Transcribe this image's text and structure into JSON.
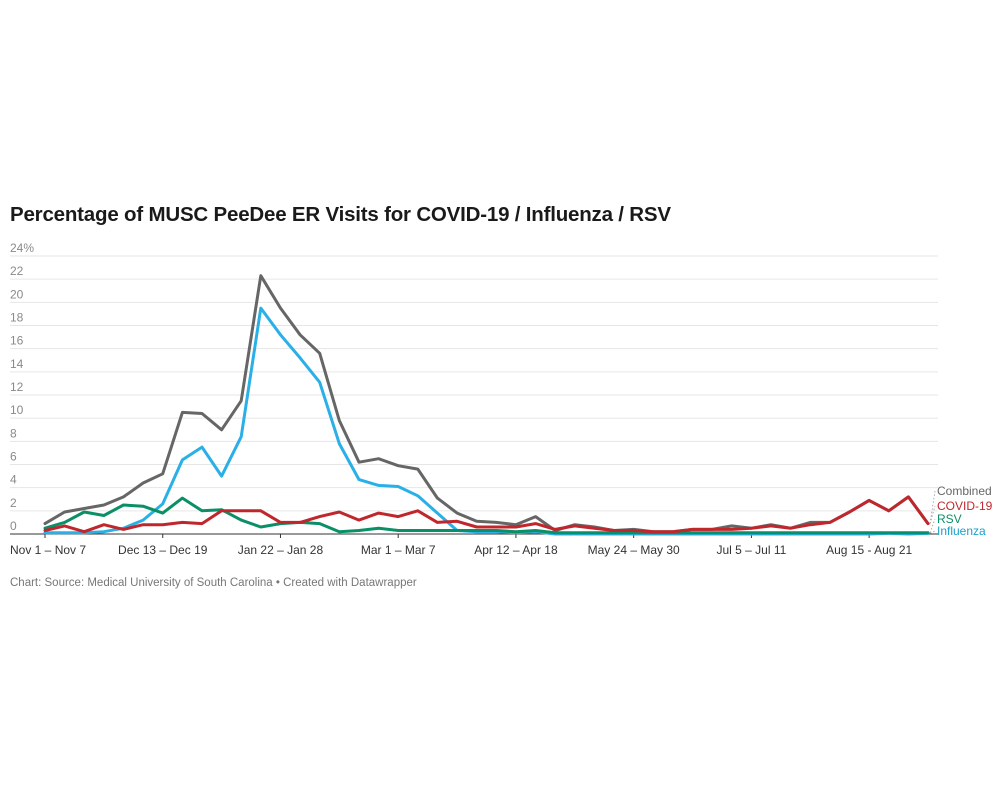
{
  "title": "Percentage of MUSC PeeDee ER Visits for COVID-19 / Influenza / RSV",
  "footer": "Chart: Source: Medical University of South Carolina • Created with Datawrapper",
  "chart_data": {
    "type": "line",
    "title": "Percentage of MUSC PeeDee ER Visits for COVID-19 / Influenza / RSV",
    "ylim": [
      0,
      24
    ],
    "y_ticks": [
      0,
      2,
      4,
      6,
      8,
      10,
      12,
      14,
      16,
      18,
      20,
      22,
      24
    ],
    "y_tick_labels": [
      "0",
      "2",
      "4",
      "6",
      "8",
      "10",
      "12",
      "14",
      "16",
      "18",
      "20",
      "22",
      "24%"
    ],
    "x_tick_labels": [
      {
        "index": 0,
        "label": "Nov 1 – Nov 7"
      },
      {
        "index": 6,
        "label": "Dec 13 – Dec 19"
      },
      {
        "index": 12,
        "label": "Jan 22 – Jan 28"
      },
      {
        "index": 18,
        "label": "Mar 1 – Mar 7"
      },
      {
        "index": 24,
        "label": "Apr 12 – Apr 18"
      },
      {
        "index": 30,
        "label": "May 24 – May 30"
      },
      {
        "index": 36,
        "label": "Jul 5 – Jul 11"
      },
      {
        "index": 42,
        "label": "Aug 15 - Aug 21"
      }
    ],
    "grid": true,
    "legend": "inline labels at right end of lines",
    "series": [
      {
        "name": "Combined",
        "color": "#666666",
        "values": [
          0.9,
          1.9,
          2.2,
          2.5,
          3.2,
          4.4,
          5.2,
          10.5,
          10.4,
          9.0,
          11.5,
          22.3,
          19.5,
          17.2,
          15.6,
          9.8,
          6.2,
          6.5,
          5.9,
          5.6,
          3.1,
          1.8,
          1.1,
          1.0,
          0.8,
          1.5,
          0.3,
          0.8,
          0.6,
          0.3,
          0.4,
          0.2,
          0.2,
          0.4,
          0.4,
          0.7,
          0.5,
          0.8,
          0.5,
          1.0,
          1.0,
          1.9,
          2.9,
          2.0,
          3.2,
          0.9
        ]
      },
      {
        "name": "COVID-19",
        "color": "#c0272d",
        "values": [
          0.3,
          0.7,
          0.2,
          0.8,
          0.4,
          0.8,
          0.8,
          1.0,
          0.9,
          2.0,
          2.0,
          2.0,
          1.0,
          1.0,
          1.5,
          1.9,
          1.2,
          1.8,
          1.5,
          2.0,
          1.0,
          1.1,
          0.6,
          0.6,
          0.6,
          0.9,
          0.4,
          0.7,
          0.5,
          0.3,
          0.3,
          0.2,
          0.2,
          0.4,
          0.4,
          0.4,
          0.5,
          0.7,
          0.5,
          0.8,
          1.0,
          1.9,
          2.9,
          2.0,
          3.2,
          0.9
        ]
      },
      {
        "name": "RSV",
        "color": "#0a8f66",
        "values": [
          0.5,
          1.0,
          1.9,
          1.6,
          2.5,
          2.4,
          1.8,
          3.1,
          2.0,
          2.1,
          1.2,
          0.6,
          0.9,
          1.0,
          0.9,
          0.2,
          0.3,
          0.5,
          0.3,
          0.3,
          0.3,
          0.3,
          0.3,
          0.3,
          0.2,
          0.3,
          0.1,
          0.1,
          0.1,
          0.1,
          0.1,
          0.1,
          0.1,
          0.1,
          0.1,
          0.1,
          0.1,
          0.1,
          0.1,
          0.1,
          0.1,
          0.1,
          0.1,
          0.1,
          0.1,
          0.1
        ]
      },
      {
        "name": "Influenza",
        "color": "#2ab0e6",
        "values": [
          0.1,
          0.1,
          0.1,
          0.2,
          0.5,
          1.2,
          2.6,
          6.4,
          7.5,
          5.0,
          8.4,
          19.5,
          17.2,
          15.2,
          13.1,
          7.8,
          4.7,
          4.2,
          4.1,
          3.3,
          1.8,
          0.3,
          0.2,
          0.2,
          0.1,
          0.2,
          0.0,
          0.0,
          0.0,
          0.0,
          0.0,
          0.0,
          0.0,
          0.0,
          0.0,
          0.0,
          0.0,
          0.0,
          0.0,
          0.0,
          0.0,
          0.0,
          0.0,
          0.05,
          0.0,
          0.05
        ]
      }
    ],
    "end_labels": [
      {
        "series": "Combined",
        "label": "Combined",
        "color": "#666666"
      },
      {
        "series": "COVID-19",
        "label": "COVID-19",
        "color": "#c0272d"
      },
      {
        "series": "RSV",
        "label": "RSV",
        "color": "#0a8f66"
      },
      {
        "series": "Influenza",
        "label": "Influenza",
        "color": "#1a9fc9"
      }
    ]
  }
}
